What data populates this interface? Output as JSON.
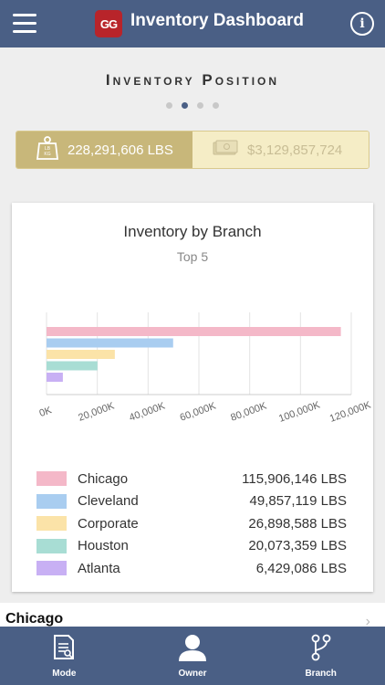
{
  "header": {
    "logo_text": "GG",
    "title": "Inventory Dashboard",
    "info_label": "i"
  },
  "section": {
    "title": "Inventory Position",
    "pager": {
      "count": 4,
      "active_index": 1
    }
  },
  "metrics": {
    "weight": {
      "icon": "weight-icon",
      "icon_text": "LB KG",
      "value": "228,291,606 LBS",
      "selected": true
    },
    "value": {
      "icon": "money-icon",
      "value": "$3,129,857,724",
      "selected": false
    }
  },
  "chart_data": {
    "type": "bar",
    "orientation": "horizontal",
    "title": "Inventory by Branch",
    "subtitle": "Top 5",
    "categories": [
      "Chicago",
      "Cleveland",
      "Corporate",
      "Houston",
      "Atlanta"
    ],
    "values": [
      115906146,
      49857119,
      26898588,
      20073359,
      6429086
    ],
    "colors": [
      "#f4b8c8",
      "#a9cdf0",
      "#fbe3a8",
      "#a8ddd4",
      "#c8b0f4"
    ],
    "xlim": [
      0,
      120000
    ],
    "x_unit_divisor": 1000,
    "xticks": [
      "0K",
      "20,000K",
      "40,000K",
      "60,000K",
      "80,000K",
      "100,000K",
      "120,000K"
    ],
    "grid": true,
    "legend_values": [
      "115,906,146 LBS",
      "49,857,119 LBS",
      "26,898,588 LBS",
      "20,073,359 LBS",
      "6,429,086 LBS"
    ]
  },
  "branch_list": {
    "first_item": "Chicago"
  },
  "bottom_nav": {
    "items": [
      {
        "label": "Mode",
        "icon": "document-icon"
      },
      {
        "label": "Owner",
        "icon": "person-icon"
      },
      {
        "label": "Branch",
        "icon": "branch-icon"
      }
    ]
  }
}
